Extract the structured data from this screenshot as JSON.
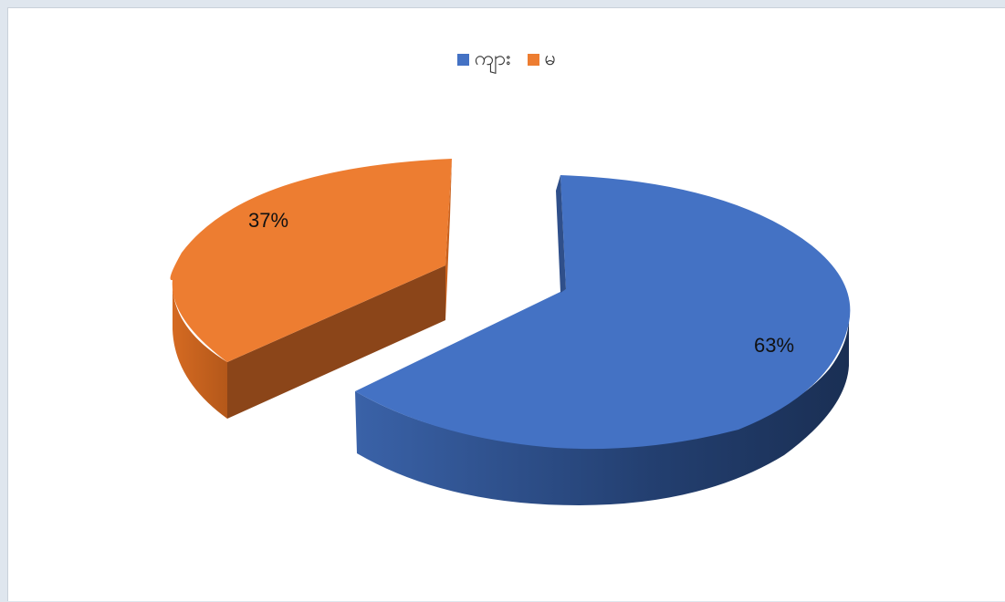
{
  "chart_data": {
    "type": "pie",
    "style": "3d-exploded",
    "categories": [
      "ကျား",
      "မ"
    ],
    "values": [
      63,
      37
    ],
    "data_labels": [
      "63%",
      "37%"
    ],
    "colors": [
      "#4472c4",
      "#ed7d31"
    ],
    "legend_position": "top-center",
    "title": ""
  }
}
